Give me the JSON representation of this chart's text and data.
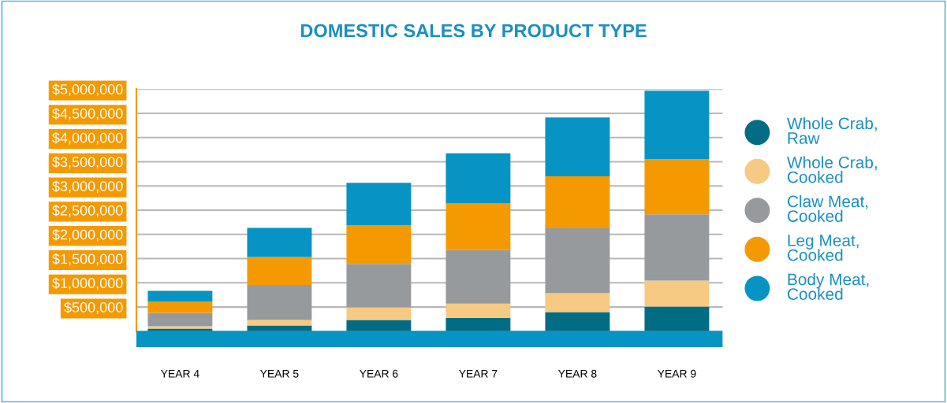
{
  "chart_data": {
    "type": "bar",
    "stacked": true,
    "title": "DOMESTIC SALES BY PRODUCT TYPE",
    "categories": [
      "YEAR 4",
      "YEAR 5",
      "YEAR 6",
      "YEAR 7",
      "YEAR 8",
      "YEAR 9"
    ],
    "series": [
      {
        "name": "Whole Crab,\nRaw",
        "color": "#026c84",
        "values": [
          55000,
          120000,
          235000,
          280000,
          395000,
          510000
        ]
      },
      {
        "name": "Whole Crab,\nCooked",
        "color": "#f6ca82",
        "values": [
          50000,
          115000,
          260000,
          290000,
          390000,
          535000
        ]
      },
      {
        "name": "Claw Meat,\nCooked",
        "color": "#979a9d",
        "values": [
          275000,
          720000,
          895000,
          1105000,
          1340000,
          1370000
        ]
      },
      {
        "name": "Leg Meat,\nCooked",
        "color": "#f49a00",
        "values": [
          230000,
          580000,
          800000,
          965000,
          1075000,
          1140000
        ]
      },
      {
        "name": "Body Meat,\nCooked",
        "color": "#0793c3",
        "values": [
          225000,
          600000,
          875000,
          1035000,
          1215000,
          1410000
        ]
      }
    ],
    "ylim": [
      0,
      5000000
    ],
    "yticks": [
      {
        "value": 500000,
        "label": "$500,000"
      },
      {
        "value": 1000000,
        "label": "$1,000,000"
      },
      {
        "value": 1500000,
        "label": "$1,500,000"
      },
      {
        "value": 2000000,
        "label": "$2,000,000"
      },
      {
        "value": 2500000,
        "label": "$2,500,000"
      },
      {
        "value": 3000000,
        "label": "$3,000,000"
      },
      {
        "value": 3500000,
        "label": "$3,500,000"
      },
      {
        "value": 4000000,
        "label": "$4,000,000"
      },
      {
        "value": 4500000,
        "label": "$4,500,000"
      },
      {
        "value": 5000000,
        "label": "$5,000,000"
      }
    ],
    "grid": "y",
    "legend": "right"
  }
}
